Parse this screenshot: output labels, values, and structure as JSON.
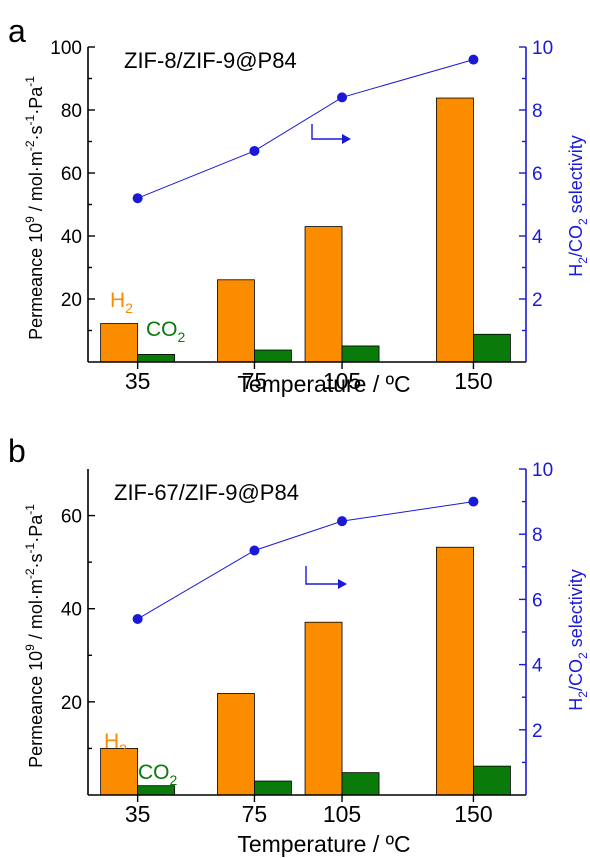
{
  "chart_data": [
    {
      "panel": "a",
      "type": "bar",
      "title": "ZIF-8/ZIF-9@P84",
      "categories": [
        "35",
        "75",
        "105",
        "150"
      ],
      "x": [
        35,
        75,
        105,
        150
      ],
      "xlabel": "Temperature / ºC",
      "ylabel": "Permeance 10⁹ / mol·m⁻²·s⁻¹·Pa⁻¹",
      "y2label": "H₂/CO₂ selectivity",
      "ylim": [
        0,
        100
      ],
      "y2lim": [
        0,
        10
      ],
      "yticks": [
        20,
        40,
        60,
        80,
        100
      ],
      "y2ticks": [
        2,
        4,
        6,
        8,
        10
      ],
      "series": [
        {
          "name": "H2",
          "label_main": "H",
          "label_sub": "2",
          "color": "#fb8c00",
          "values": [
            12.2,
            26.1,
            43.0,
            83.8
          ]
        },
        {
          "name": "CO2",
          "label_main": "CO",
          "label_sub": "2",
          "color": "#0a7a0a",
          "values": [
            2.4,
            3.8,
            5.1,
            8.8
          ]
        },
        {
          "name": "H2/CO2 selectivity",
          "axis": "right",
          "type": "line",
          "color": "#1a1ad6",
          "values": [
            5.2,
            6.7,
            8.4,
            9.6
          ]
        }
      ]
    },
    {
      "panel": "b",
      "type": "bar",
      "title": "ZIF-67/ZIF-9@P84",
      "categories": [
        "35",
        "75",
        "105",
        "150"
      ],
      "x": [
        35,
        75,
        105,
        150
      ],
      "xlabel": "Temperature / ºC",
      "ylabel": "Permeance 10⁹ / mol·m⁻²·s⁻¹·Pa⁻¹",
      "y2label": "H₂/CO₂ selectivity",
      "ylim": [
        0,
        70
      ],
      "y2lim": [
        0,
        10
      ],
      "yticks": [
        20,
        40,
        60
      ],
      "y2ticks": [
        2,
        4,
        6,
        8,
        10
      ],
      "series": [
        {
          "name": "H2",
          "label_main": "H",
          "label_sub": "2",
          "color": "#fb8c00",
          "values": [
            10.0,
            21.8,
            37.1,
            53.2
          ]
        },
        {
          "name": "CO2",
          "label_main": "CO",
          "label_sub": "2",
          "color": "#0a7a0a",
          "values": [
            2.0,
            3.0,
            4.8,
            6.2
          ]
        },
        {
          "name": "H2/CO2 selectivity",
          "axis": "right",
          "type": "line",
          "color": "#1a1ad6",
          "values": [
            5.4,
            7.5,
            8.4,
            9.0
          ]
        }
      ]
    }
  ]
}
